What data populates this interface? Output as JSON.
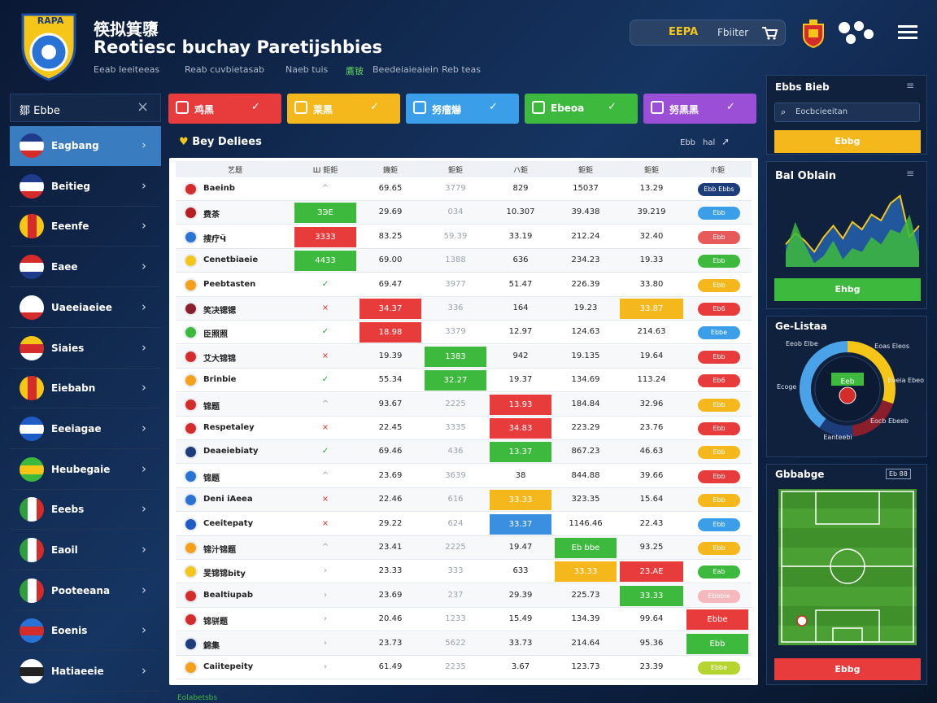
{
  "header": {
    "logo": "RAPA",
    "kicker": "筷拟箕隳",
    "title": "Reotiesc buchay Paretijshbies",
    "nav": [
      "Eeab Ieeiteeas",
      "Reab cuvbietasab",
      "Naeb tuis",
      "鷹铍",
      "Beedeiaieaiein",
      "Reb teas"
    ],
    "badge": "EEPA",
    "filter": "Fbiiter"
  },
  "sidebar": {
    "title": "鄒 Ebbe",
    "items": [
      "Eagbang",
      "Beitieg",
      "Eeenfe",
      "Eaee",
      "Uaeeiaeiee",
      "Siaies",
      "Eiebabn",
      "Eeeiagae",
      "Heubegaie",
      "Eeebs",
      "Eaoil",
      "Pooteeana",
      "Eoenis",
      "Hatiaeeie"
    ]
  },
  "filters": [
    "鸡黑",
    "莱黑",
    "努瘤爀",
    "Ebeoa",
    "努黑黑"
  ],
  "table": {
    "title": "Bey Deliees",
    "actions": [
      "Ebb",
      "hal"
    ],
    "columns": [
      "艺题",
      "Ш 鉅鉅",
      "鐖鉅",
      "鉅鉅",
      "ハ鉅",
      "鉅鉅",
      "鉅鉅",
      "ホ鉅"
    ],
    "rows": [
      [
        "Baeinb",
        "^",
        "69.65",
        "3779",
        "829",
        "15037",
        "13.29",
        "Ebb Ebbs"
      ],
      [
        "费茶",
        "ЗЭЕ",
        "29.69",
        "034",
        "10.307",
        "39.438",
        "39.219",
        "Ebb"
      ],
      [
        "搜疗Ӵ",
        "3333",
        "83.25",
        "59.39",
        "33.19",
        "212.24",
        "32.40",
        "Ebb"
      ],
      [
        "Cenetbiaeie",
        "4433",
        "69.00",
        "1388",
        "636",
        "234.23",
        "19.33",
        "Ebb"
      ],
      [
        "Peebtasten",
        "✓",
        "69.47",
        "3977",
        "51.47",
        "226.39",
        "33.80",
        "Ebb"
      ],
      [
        "笑决锶锶",
        "×",
        "34.37",
        "336",
        "164",
        "19.23",
        "33.87",
        "Eb6"
      ],
      [
        "臣照照",
        "✓",
        "18.98",
        "3379",
        "12.97",
        "124.63",
        "214.63",
        "Ebbe"
      ],
      [
        "艾大锦锦",
        "×",
        "19.39",
        "1383",
        "942",
        "19.135",
        "19.64",
        "Ebb"
      ],
      [
        "Brinbie",
        "✓",
        "55.34",
        "32.27",
        "19.37",
        "134.69",
        "113.24",
        "Eb6"
      ],
      [
        "锦题",
        "^",
        "93.67",
        "2225",
        "13.93",
        "184.84",
        "32.96",
        "Ebb"
      ],
      [
        "Respetaley",
        "×",
        "22.45",
        "3335",
        "34.83",
        "223.29",
        "23.76",
        "Ebb"
      ],
      [
        "Deaeiebiaty",
        "✓",
        "69.46",
        "436",
        "13.37",
        "867.23",
        "46.63",
        "Ebb"
      ],
      [
        "锦题",
        "^",
        "23.69",
        "3639",
        "38",
        "844.88",
        "39.66",
        "Ebb"
      ],
      [
        "Deni iAeea",
        "×",
        "22.46",
        "616",
        "33.33",
        "323.35",
        "15.64",
        "Ebb"
      ],
      [
        "Ceeitepaty",
        "×",
        "29.22",
        "624",
        "33.37",
        "1146.46",
        "22.43",
        "Ebb"
      ],
      [
        "锦汁锦题",
        "^",
        "23.41",
        "2225",
        "19.47",
        "Eb bbe",
        "93.25",
        "Ebb"
      ],
      [
        "旻锦锦bity",
        "›",
        "23.33",
        "333",
        "633",
        "33.33",
        "23.AE",
        "Eab"
      ],
      [
        "Bealtiupab",
        "›",
        "23.69",
        "237",
        "29.39",
        "225.73",
        "33.33",
        "Ebbbie"
      ],
      [
        "锦骈题",
        "›",
        "20.46",
        "1233",
        "15.49",
        "134.39",
        "99.64",
        "Ebbe"
      ],
      [
        "錦集",
        "›",
        "23.73",
        "5622",
        "33.73",
        "214.64",
        "95.36",
        "Ebb"
      ],
      [
        "Caiitepeity",
        "›",
        "61.49",
        "2235",
        "3.67",
        "123.73",
        "23.39",
        "Ebbe"
      ]
    ]
  },
  "panels": {
    "search": {
      "title": "Ebbs Bieb",
      "placeholder": "Eocbcieeitan",
      "button": "Ebbg"
    },
    "trend": {
      "title": "Bal Oblain",
      "button": "Ehbg",
      "ylim": [
        0,
        100
      ],
      "series": [
        {
          "color": "#f5c518",
          "values": [
            30,
            45,
            35,
            20,
            40,
            55,
            38,
            60,
            50,
            70,
            62,
            85,
            95,
            40,
            55
          ]
        },
        {
          "color": "#3dba3d",
          "values": [
            20,
            60,
            30,
            5,
            15,
            35,
            10,
            25,
            20,
            40,
            30,
            50,
            45,
            70,
            20
          ]
        }
      ]
    },
    "ring": {
      "title": "Ge-Listaa",
      "center": "Eeb",
      "values": [
        30,
        18,
        12,
        40
      ],
      "colors": [
        "#f5c518",
        "#8a1f2b",
        "#1c3d7a",
        "#4aa3e8"
      ],
      "callouts": [
        "Eeob Elbe",
        "Eoas Eleos",
        "Ecoge",
        "Eoeia Ebeo",
        "Eocb Ebeeb",
        "Eanteebi"
      ]
    },
    "pitch": {
      "title": "Gbbabge",
      "tag": "Eb 88",
      "button": "Ebbg"
    }
  },
  "footer": "Eolabetsbs"
}
